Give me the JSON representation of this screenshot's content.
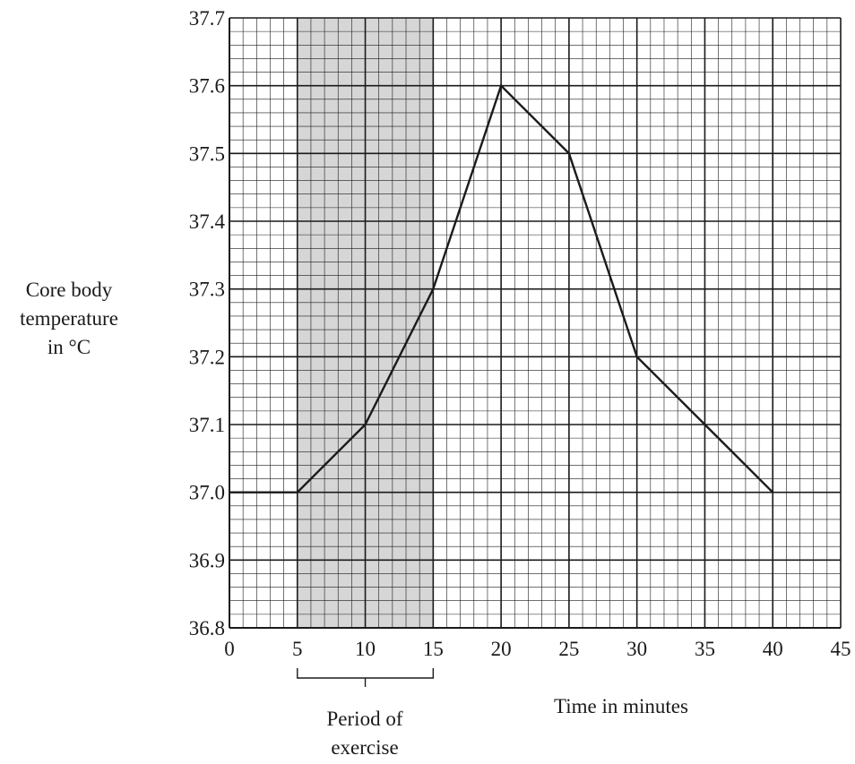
{
  "chart_data": {
    "type": "line",
    "title": "",
    "ylabel_lines": [
      "Core body",
      "temperature",
      "in °C"
    ],
    "xlabel": "Time in minutes",
    "x": [
      0,
      5,
      10,
      15,
      20,
      25,
      30,
      35,
      40
    ],
    "y": [
      37.0,
      37.0,
      37.1,
      37.3,
      37.6,
      37.5,
      37.2,
      37.1,
      37.0
    ],
    "xlim": [
      0,
      45
    ],
    "ylim": [
      36.8,
      37.7
    ],
    "x_ticks": [
      "0",
      "5",
      "10",
      "15",
      "20",
      "25",
      "30",
      "35",
      "40",
      "45"
    ],
    "y_ticks": [
      "36.8",
      "36.9",
      "37.0",
      "37.1",
      "37.2",
      "37.3",
      "37.4",
      "37.5",
      "37.6",
      "37.7"
    ],
    "grid": true,
    "shaded_region": {
      "x_start": 5,
      "x_end": 15,
      "label_lines": [
        "Period of",
        "exercise"
      ],
      "color": "#d6d6d6"
    },
    "line_color": "#1a1a1a",
    "grid_color": "#1a1a1a"
  }
}
